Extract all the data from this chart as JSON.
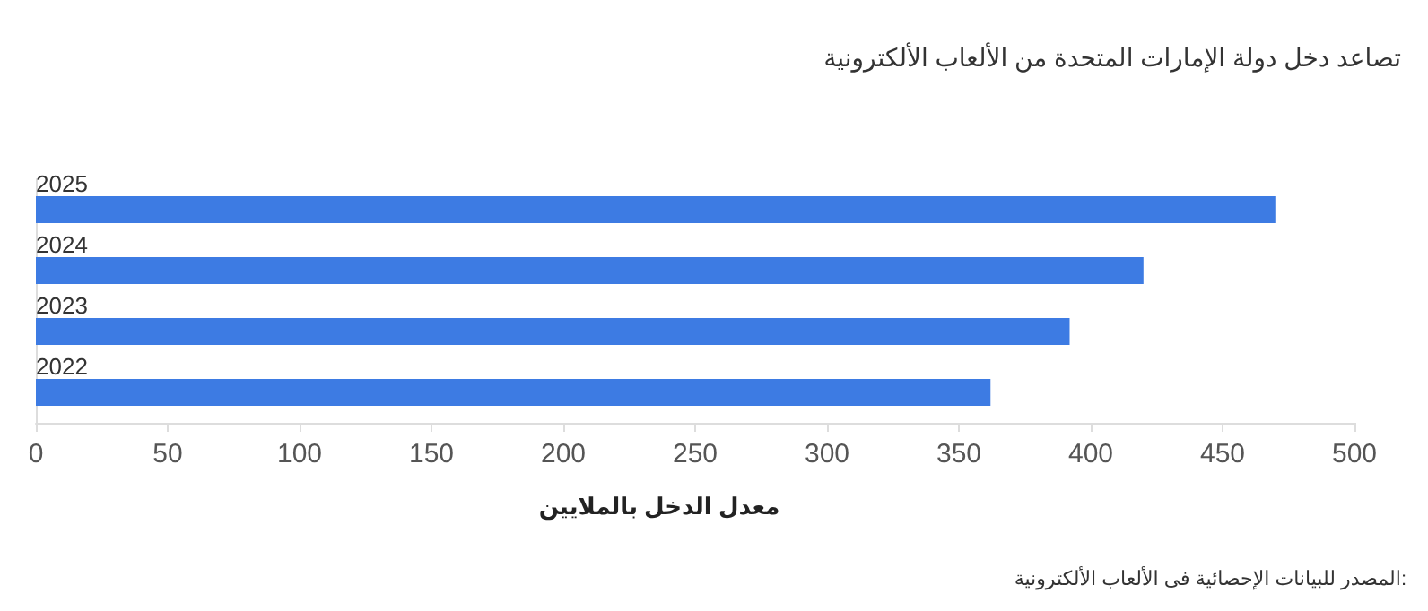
{
  "chart_data": {
    "type": "bar",
    "orientation": "horizontal",
    "title": "تصاعد دخل دولة الإمارات المتحدة من الألعاب الألكترونية",
    "xlabel": "معدل الدخل بالملايين",
    "annotations": [
      "المصدر للبيانات الإحصائية فى الألعاب الألكترونية:"
    ],
    "categories": [
      "2025",
      "2024",
      "2023",
      "2022"
    ],
    "values": [
      470,
      420,
      392,
      362
    ],
    "color": "#3d7be3",
    "xlim": [
      0,
      500
    ],
    "xticks": [
      0,
      50,
      100,
      150,
      200,
      250,
      300,
      350,
      400,
      450,
      500
    ],
    "grid": false
  }
}
